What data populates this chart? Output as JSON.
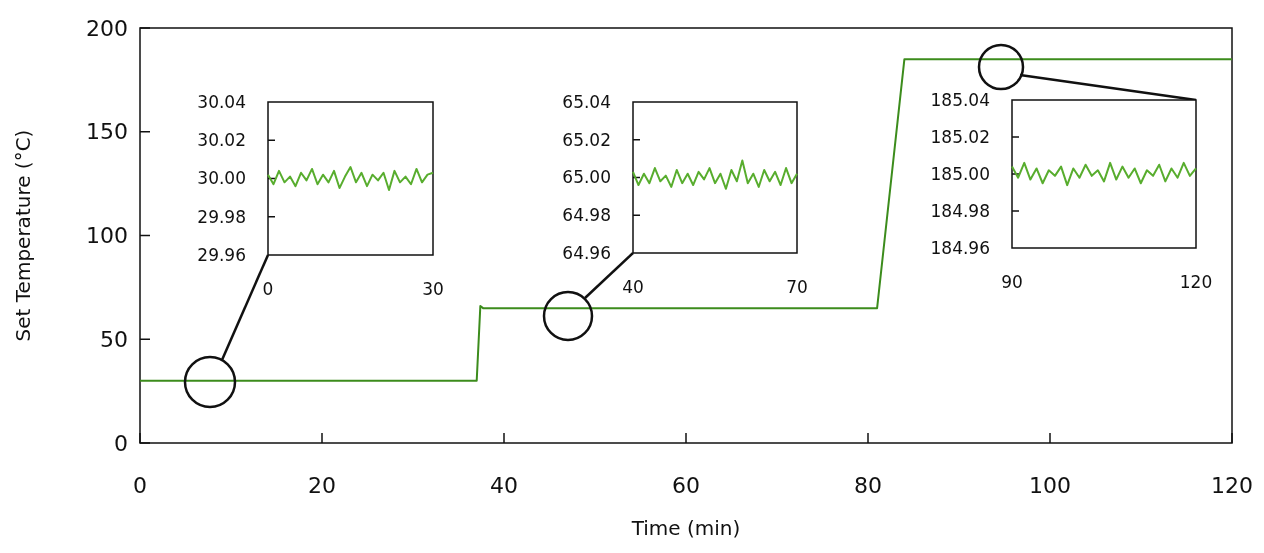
{
  "chart_data": [
    {
      "type": "line",
      "xlabel": "Time (min)",
      "ylabel": "Set Temperature (°C)",
      "x": [
        0,
        37,
        37.4,
        37.7,
        81,
        84,
        120
      ],
      "values": [
        30,
        30,
        66,
        65,
        65,
        185,
        185
      ],
      "color": "#3c8c1c",
      "xlim": [
        0,
        120
      ],
      "xticks": [
        0,
        20,
        40,
        60,
        80,
        100,
        120
      ],
      "ylim": [
        0,
        200
      ],
      "yticks": [
        0,
        50,
        100,
        150,
        200
      ]
    },
    {
      "type": "line",
      "x": [
        0,
        1,
        2,
        3,
        4,
        5,
        6,
        7,
        8,
        9,
        10,
        11,
        12,
        13,
        14,
        15,
        16,
        17,
        18,
        19,
        20,
        21,
        22,
        23,
        24,
        25,
        26,
        27,
        28,
        29,
        30
      ],
      "values": [
        30.002,
        29.997,
        30.004,
        29.998,
        30.001,
        29.996,
        30.003,
        29.999,
        30.005,
        29.997,
        30.002,
        29.998,
        30.004,
        29.995,
        30.001,
        30.006,
        29.998,
        30.003,
        29.996,
        30.002,
        29.999,
        30.003,
        29.994,
        30.004,
        29.998,
        30.001,
        29.997,
        30.005,
        29.998,
        30.002,
        30.003
      ],
      "color": "#58ad2e",
      "xlim": [
        0,
        30
      ],
      "xticks": [
        0,
        30
      ],
      "ylim": [
        29.96,
        30.04
      ],
      "yticks": [
        {
          "value": 29.96,
          "label": "29.96"
        },
        {
          "value": 29.98,
          "label": "29.98"
        },
        {
          "value": 30,
          "label": "30.00"
        },
        {
          "value": 30.02,
          "label": "30.02"
        },
        {
          "value": 30.04,
          "label": "30.04"
        }
      ]
    },
    {
      "type": "line",
      "x": [
        40,
        41,
        42,
        43,
        44,
        45,
        46,
        47,
        48,
        49,
        50,
        51,
        52,
        53,
        54,
        55,
        56,
        57,
        58,
        59,
        60,
        61,
        62,
        63,
        64,
        65,
        66,
        67,
        68,
        69,
        70
      ],
      "values": [
        65.003,
        64.996,
        65.002,
        64.997,
        65.005,
        64.998,
        65.001,
        64.995,
        65.004,
        64.997,
        65.002,
        64.996,
        65.003,
        64.999,
        65.005,
        64.997,
        65.002,
        64.994,
        65.004,
        64.998,
        65.009,
        64.997,
        65.002,
        64.995,
        65.004,
        64.998,
        65.003,
        64.996,
        65.005,
        64.997,
        65.002
      ],
      "color": "#58ad2e",
      "xlim": [
        40,
        70
      ],
      "xticks": [
        40,
        70
      ],
      "ylim": [
        64.96,
        65.04
      ],
      "yticks": [
        {
          "value": 64.96,
          "label": "64.96"
        },
        {
          "value": 64.98,
          "label": "64.98"
        },
        {
          "value": 65,
          "label": "65.00"
        },
        {
          "value": 65.02,
          "label": "65.02"
        },
        {
          "value": 65.04,
          "label": "65.04"
        }
      ]
    },
    {
      "type": "line",
      "x": [
        90,
        91,
        92,
        93,
        94,
        95,
        96,
        97,
        98,
        99,
        100,
        101,
        102,
        103,
        104,
        105,
        106,
        107,
        108,
        109,
        110,
        111,
        112,
        113,
        114,
        115,
        116,
        117,
        118,
        119,
        120
      ],
      "values": [
        185.004,
        184.998,
        185.006,
        184.997,
        185.003,
        184.995,
        185.002,
        184.999,
        185.004,
        184.994,
        185.003,
        184.998,
        185.005,
        184.999,
        185.002,
        184.996,
        185.006,
        184.997,
        185.004,
        184.998,
        185.003,
        184.995,
        185.002,
        184.999,
        185.005,
        184.996,
        185.003,
        184.998,
        185.006,
        184.999,
        185.003
      ],
      "color": "#58ad2e",
      "xlim": [
        90,
        120
      ],
      "xticks": [
        90,
        120
      ],
      "ylim": [
        184.96,
        185.04
      ],
      "yticks": [
        {
          "value": 184.96,
          "label": "184.96"
        },
        {
          "value": 184.98,
          "label": "184.98"
        },
        {
          "value": 185,
          "label": "185.00"
        },
        {
          "value": 185.02,
          "label": "185.02"
        },
        {
          "value": 185.04,
          "label": "185.04"
        }
      ]
    }
  ]
}
